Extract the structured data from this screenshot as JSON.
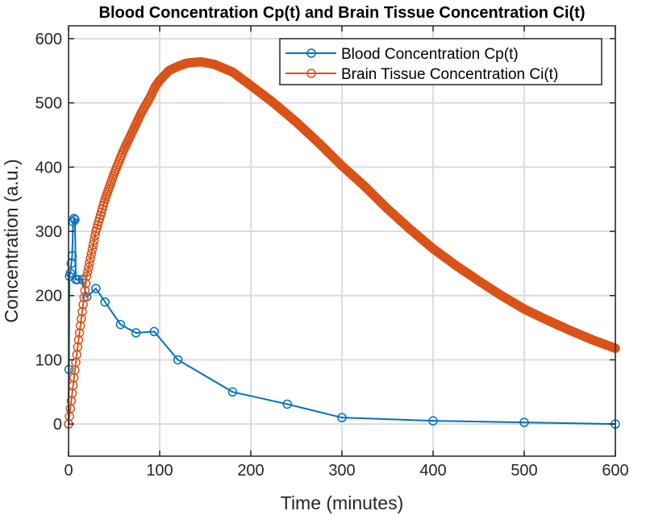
{
  "chart_data": {
    "type": "line",
    "title": "Blood Concentration Cp(t) and Brain Tissue Concentration Ci(t)",
    "xlabel": "Time (minutes)",
    "ylabel": "Concentration (a.u.)",
    "xlim": [
      0,
      600
    ],
    "ylim": [
      -50,
      620
    ],
    "xticks": [
      0,
      100,
      200,
      300,
      400,
      500,
      600
    ],
    "yticks": [
      0,
      100,
      200,
      300,
      400,
      500,
      600
    ],
    "grid": true,
    "legend_position": "top-right",
    "series": [
      {
        "name": "Blood Concentration Cp(t)",
        "color": "#0072BD",
        "marker": "circle",
        "x": [
          0,
          0.5,
          1,
          2,
          3,
          4,
          5,
          6,
          7,
          8,
          10,
          15,
          20,
          30,
          40,
          57,
          74,
          94,
          120,
          180,
          240,
          300,
          400,
          500,
          600
        ],
        "y": [
          0,
          85,
          230,
          235,
          250,
          262,
          315,
          320,
          318,
          225,
          225,
          225,
          198,
          211,
          190,
          155,
          142,
          144,
          100,
          50,
          31,
          10,
          5,
          2.5,
          0
        ]
      },
      {
        "name": "Brain Tissue Concentration Ci(t)",
        "color": "#D95319",
        "marker": "circle",
        "x": [
          0,
          5,
          10,
          20,
          30,
          40,
          50,
          60,
          70,
          80,
          90,
          95,
          100,
          110,
          120,
          130,
          145,
          160,
          180,
          200,
          225,
          250,
          275,
          300,
          325,
          350,
          375,
          400,
          425,
          450,
          475,
          500,
          525,
          550,
          575,
          600
        ],
        "y": [
          0,
          60,
          120,
          230,
          300,
          350,
          390,
          425,
          455,
          485,
          510,
          525,
          535,
          550,
          557,
          562,
          564,
          560,
          548,
          527,
          500,
          470,
          437,
          402,
          370,
          335,
          303,
          273,
          247,
          223,
          200,
          179,
          162,
          146,
          131,
          118
        ]
      }
    ]
  }
}
